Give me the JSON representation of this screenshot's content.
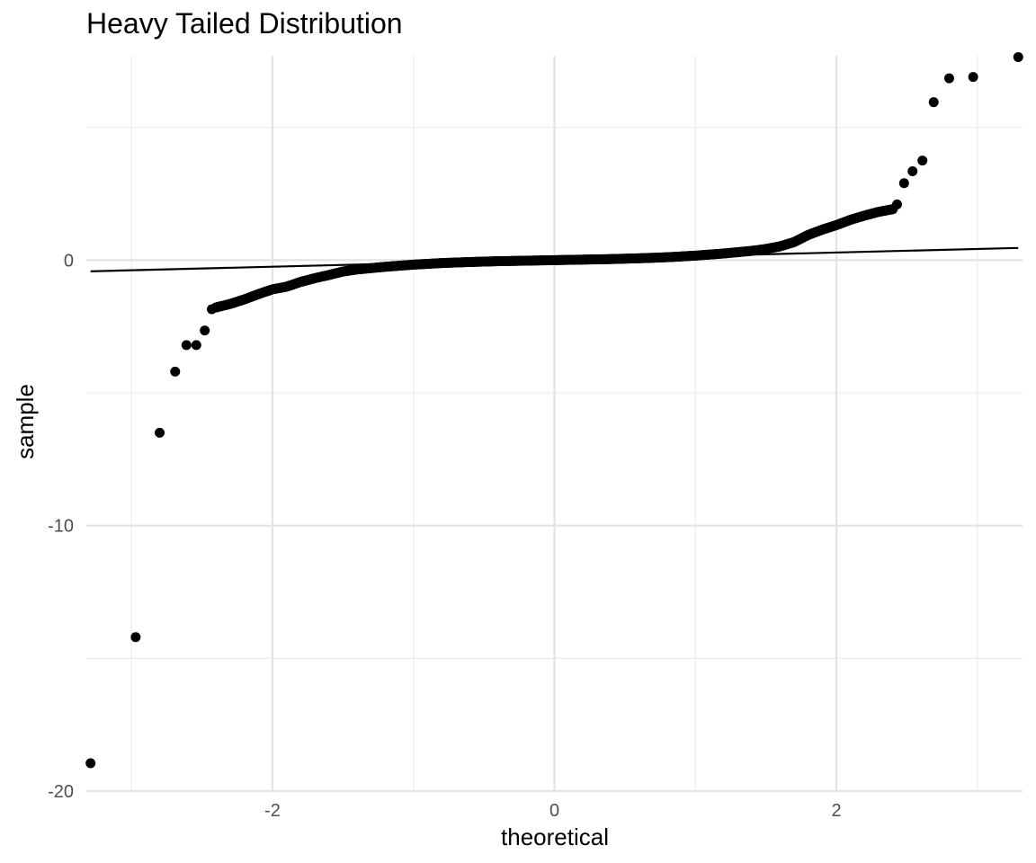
{
  "chart_data": {
    "type": "scatter",
    "title": "Heavy Tailed Distribution",
    "xlabel": "theoretical",
    "ylabel": "sample",
    "xlim": [
      -3.32,
      3.32
    ],
    "ylim": [
      -20,
      7.7
    ],
    "x_ticks": [
      -2,
      0,
      2
    ],
    "x_tick_labels": [
      "-2",
      "0",
      "2"
    ],
    "y_ticks": [
      -20,
      -10,
      0
    ],
    "y_tick_labels": [
      "-20",
      "-10",
      "0"
    ],
    "grid": true,
    "legend": "none",
    "reference_line": {
      "x": [
        -3.29,
        3.29
      ],
      "y": [
        -0.42,
        0.46
      ]
    },
    "outlier_points": [
      {
        "x": -3.29,
        "y": -18.95
      },
      {
        "x": -2.97,
        "y": -14.2
      },
      {
        "x": -2.8,
        "y": -6.5
      },
      {
        "x": -2.69,
        "y": -4.2
      },
      {
        "x": -2.61,
        "y": -3.2
      },
      {
        "x": -2.54,
        "y": -3.2
      },
      {
        "x": -2.48,
        "y": -2.65
      },
      {
        "x": -2.43,
        "y": -1.85
      },
      {
        "x": 2.43,
        "y": 2.1
      },
      {
        "x": 2.48,
        "y": 2.9
      },
      {
        "x": 2.54,
        "y": 3.35
      },
      {
        "x": 2.61,
        "y": 3.75
      },
      {
        "x": 2.69,
        "y": 5.95
      },
      {
        "x": 2.8,
        "y": 6.85
      },
      {
        "x": 2.97,
        "y": 6.9
      },
      {
        "x": 3.29,
        "y": 7.65
      }
    ],
    "body_curve": [
      [
        -2.4,
        -1.78
      ],
      [
        -2.3,
        -1.65
      ],
      [
        -2.2,
        -1.48
      ],
      [
        -2.1,
        -1.28
      ],
      [
        -2.0,
        -1.1
      ],
      [
        -1.9,
        -1.0
      ],
      [
        -1.8,
        -0.82
      ],
      [
        -1.7,
        -0.68
      ],
      [
        -1.6,
        -0.56
      ],
      [
        -1.5,
        -0.43
      ],
      [
        -1.4,
        -0.35
      ],
      [
        -1.2,
        -0.25
      ],
      [
        -1.0,
        -0.17
      ],
      [
        -0.8,
        -0.11
      ],
      [
        -0.6,
        -0.07
      ],
      [
        -0.4,
        -0.04
      ],
      [
        -0.2,
        -0.02
      ],
      [
        0.0,
        0.0
      ],
      [
        0.2,
        0.02
      ],
      [
        0.4,
        0.04
      ],
      [
        0.6,
        0.07
      ],
      [
        0.8,
        0.11
      ],
      [
        1.0,
        0.17
      ],
      [
        1.2,
        0.25
      ],
      [
        1.4,
        0.35
      ],
      [
        1.5,
        0.42
      ],
      [
        1.6,
        0.52
      ],
      [
        1.7,
        0.68
      ],
      [
        1.8,
        0.95
      ],
      [
        1.9,
        1.15
      ],
      [
        2.0,
        1.32
      ],
      [
        2.1,
        1.52
      ],
      [
        2.2,
        1.68
      ],
      [
        2.3,
        1.82
      ],
      [
        2.4,
        1.92
      ]
    ]
  }
}
